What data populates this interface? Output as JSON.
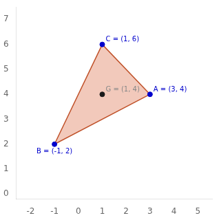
{
  "chart_data": {
    "type": "scatter",
    "series": [
      {
        "type": "area",
        "x": [
          3,
          -1,
          1
        ],
        "values": [
          4,
          2,
          6
        ],
        "color": "#f2c9bb"
      },
      {
        "type": "line",
        "x": [
          3,
          -1,
          1
        ],
        "values": [
          4,
          2,
          6
        ],
        "color": "#c0522a"
      },
      {
        "type": "scatter",
        "x": [
          3,
          -1,
          1
        ],
        "values": [
          4,
          2,
          6
        ],
        "color": "#0000cc",
        "marker": "circle"
      },
      {
        "type": "scatter",
        "x": [
          1
        ],
        "values": [
          4
        ],
        "color": "#1a1a1a",
        "marker": "circle"
      }
    ],
    "annotations": [
      {
        "text": "A = (3, 4)",
        "x": 3,
        "y": 4,
        "color": "#0000cc"
      },
      {
        "text": "B = (-1, 2)",
        "x": -1,
        "y": 2,
        "color": "#0000cc"
      },
      {
        "text": "C = (1, 6)",
        "x": 1,
        "y": 6,
        "color": "#0000cc"
      },
      {
        "text": "G = (1, 4)",
        "x": 1,
        "y": 4,
        "color": "#888888"
      }
    ],
    "xlim": [
      -2.6,
      5.6
    ],
    "ylim": [
      -0.2,
      7.5
    ],
    "xticks": [
      -2,
      -1,
      0,
      1,
      2,
      3,
      4,
      5
    ],
    "yticks": [
      0,
      1,
      2,
      3,
      4,
      5,
      6,
      7
    ],
    "grid": false
  }
}
